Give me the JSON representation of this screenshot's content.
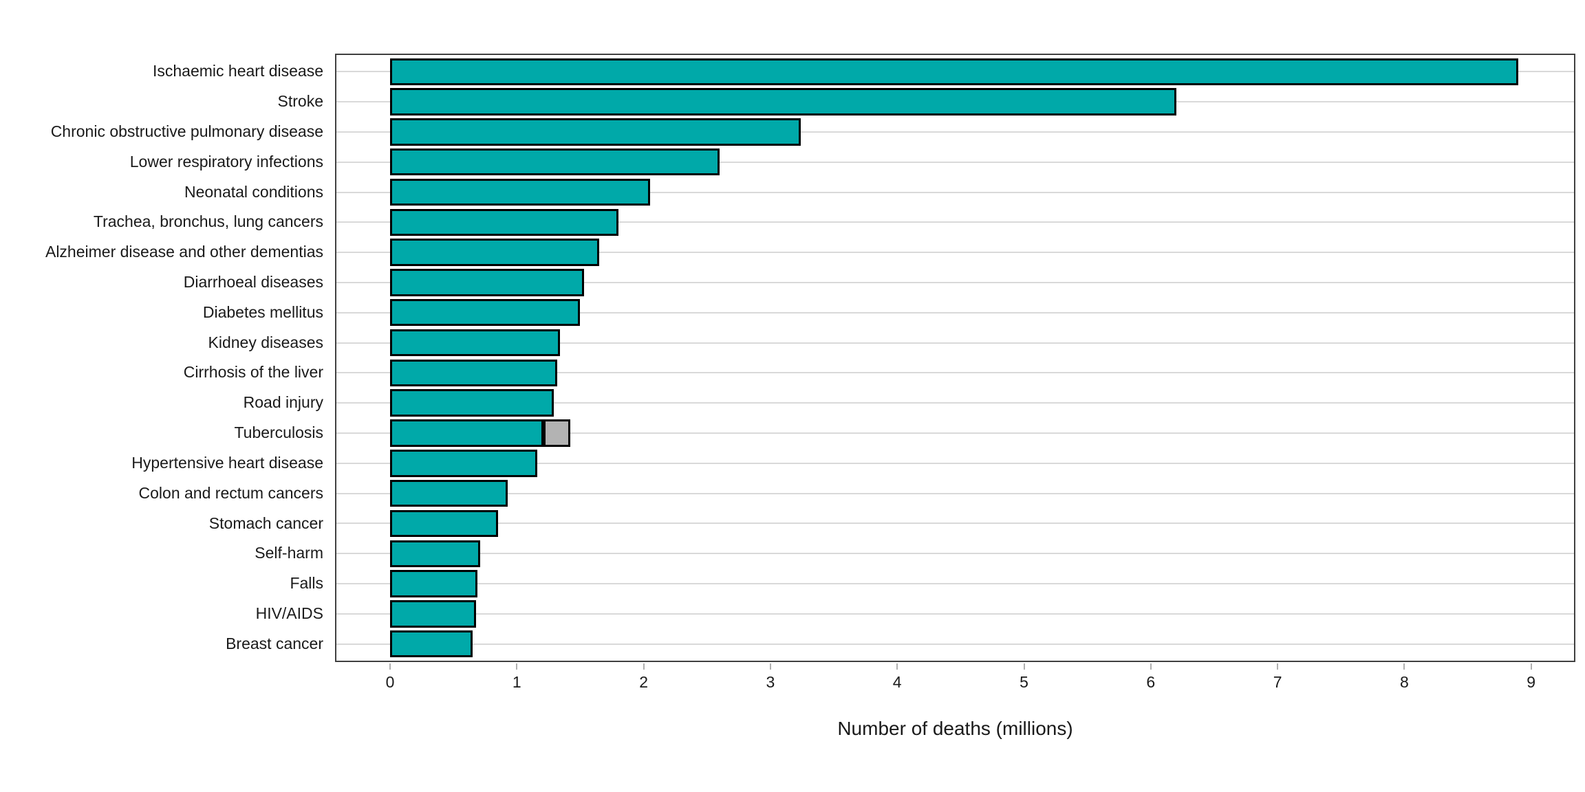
{
  "chart_data": {
    "type": "bar",
    "orientation": "horizontal",
    "title": "",
    "xlabel": "Number of deaths (millions)",
    "ylabel": "",
    "x_axis": {
      "min": 0,
      "max_visible": 9.35,
      "ticks": [
        0,
        1,
        2,
        3,
        4,
        5,
        6,
        7,
        8,
        9
      ]
    },
    "grid": "horizontal category gridlines only",
    "legend": "none",
    "bars": [
      {
        "label": "Ischaemic heart disease",
        "value": 8.9
      },
      {
        "label": "Stroke",
        "value": 6.2
      },
      {
        "label": "Chronic obstructive pulmonary disease",
        "value": 3.24
      },
      {
        "label": "Lower respiratory infections",
        "value": 2.6
      },
      {
        "label": "Neonatal conditions",
        "value": 2.05
      },
      {
        "label": "Trachea, bronchus, lung cancers",
        "value": 1.8
      },
      {
        "label": "Alzheimer disease and other dementias",
        "value": 1.65
      },
      {
        "label": "Diarrhoeal diseases",
        "value": 1.53
      },
      {
        "label": "Diabetes mellitus",
        "value": 1.5
      },
      {
        "label": "Kidney diseases",
        "value": 1.34
      },
      {
        "label": "Cirrhosis of the liver",
        "value": 1.32
      },
      {
        "label": "Road injury",
        "value": 1.29
      },
      {
        "label": "Tuberculosis",
        "value": 1.21,
        "extension_grey": 0.21
      },
      {
        "label": "Hypertensive heart disease",
        "value": 1.16
      },
      {
        "label": "Colon and rectum cancers",
        "value": 0.93
      },
      {
        "label": "Stomach cancer",
        "value": 0.85
      },
      {
        "label": "Self-harm",
        "value": 0.71
      },
      {
        "label": "Falls",
        "value": 0.69
      },
      {
        "label": "HIV/AIDS",
        "value": 0.68
      },
      {
        "label": "Breast cancer",
        "value": 0.65
      }
    ],
    "colors": {
      "bar_fill": "#00a9a9",
      "bar_stroke": "#000000",
      "extension_fill": "#b3b3b3",
      "gridline": "#d9d9d9",
      "plot_border": "#404040",
      "axis_tick": "#b0b0b0",
      "text": "#1a1a1a",
      "background": "#ffffff"
    }
  }
}
